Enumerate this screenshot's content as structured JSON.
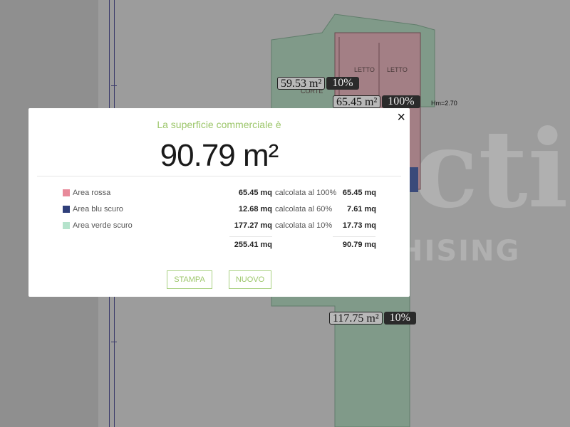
{
  "plan": {
    "rooms": [
      "LETTO",
      "LETTO",
      "CORTE"
    ],
    "tags": [
      {
        "value": "59.53 m²",
        "percent": "10%"
      },
      {
        "value": "65.45 m²",
        "percent": "100%"
      },
      {
        "value": "117.75 m²",
        "percent": "10%"
      }
    ],
    "height_label": "Hm=2.70",
    "watermark": {
      "line1": "cti",
      "line2": "HISING"
    },
    "colors": {
      "green": "#7e9a88",
      "red": "#a37f85",
      "blue": "#3a4a7a"
    }
  },
  "modal": {
    "title": "La superficie commerciale è",
    "total": "90.79 m²",
    "rows": [
      {
        "label": "Area rossa",
        "color": "#e88a9a",
        "area": "65.45 mq",
        "calc": "calcolata al 100%",
        "result": "65.45 mq"
      },
      {
        "label": "Area blu scuro",
        "color": "#2f3f7a",
        "area": "12.68 mq",
        "calc": "calcolata al 60%",
        "result": "7.61 mq"
      },
      {
        "label": "Area verde scuro",
        "color": "#b5e3cc",
        "area": "177.27 mq",
        "calc": "calcolata al 10%",
        "result": "17.73 mq"
      }
    ],
    "sum_area": "255.41 mq",
    "sum_result": "90.79 mq",
    "print_label": "STAMPA",
    "new_label": "NUOVO",
    "close_icon": "×"
  }
}
